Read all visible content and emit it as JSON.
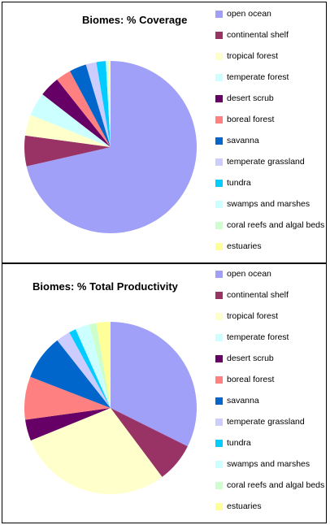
{
  "chart_data": [
    {
      "type": "pie",
      "title": "Biomes: % Coverage",
      "categories": [
        "open ocean",
        "continental shelf",
        "tropical forest",
        "temperate forest",
        "desert scrub",
        "boreal forest",
        "savanna",
        "temperate grassland",
        "tundra",
        "swamps and marshes",
        "coral reefs and algal beds",
        "estuaries"
      ],
      "values": [
        65.0,
        5.2,
        3.6,
        4.0,
        3.5,
        2.6,
        2.9,
        1.8,
        1.6,
        0.4,
        0.1,
        0.3
      ],
      "colors": [
        "#a0a0f8",
        "#993366",
        "#ffffcc",
        "#ccffff",
        "#660066",
        "#ff8080",
        "#0066cc",
        "#ccccff",
        "#00ccff",
        "#ccffff",
        "#ccffcc",
        "#ffff99"
      ],
      "legend_position": "right"
    },
    {
      "type": "pie",
      "title": "Biomes: % Total Productivity",
      "categories": [
        "open ocean",
        "continental shelf",
        "tropical forest",
        "temperate forest",
        "desert scrub",
        "boreal forest",
        "savanna",
        "temperate grassland",
        "tundra",
        "swamps and marshes",
        "coral reefs and algal beds",
        "estuaries"
      ],
      "values": [
        24.4,
        5.6,
        21.9,
        0.0,
        3.0,
        6.1,
        6.4,
        2.0,
        1.0,
        2.0,
        1.0,
        2.0
      ],
      "colors": [
        "#a0a0f8",
        "#993366",
        "#ffffcc",
        "#ccffff",
        "#660066",
        "#ff8080",
        "#0066cc",
        "#ccccff",
        "#00ccff",
        "#ccffff",
        "#ccffcc",
        "#ffff99"
      ],
      "legend_position": "right"
    }
  ]
}
